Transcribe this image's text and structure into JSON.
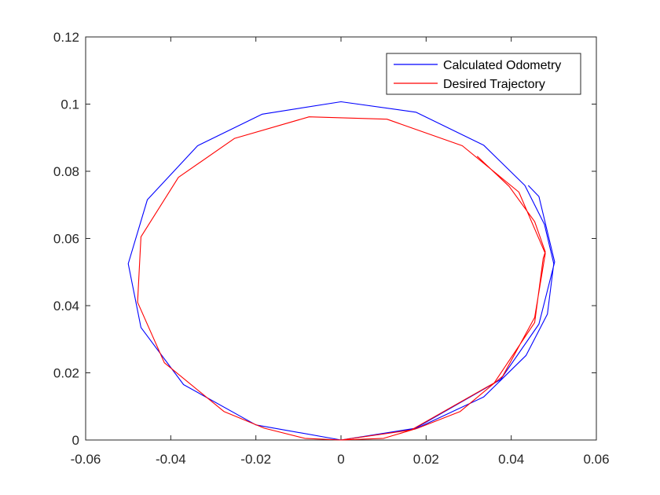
{
  "chart_data": {
    "type": "line",
    "title": "",
    "xlabel": "",
    "ylabel": "",
    "xlim": [
      -0.06,
      0.06
    ],
    "ylim": [
      0,
      0.12
    ],
    "x_ticks": [
      -0.06,
      -0.04,
      -0.02,
      0,
      0.02,
      0.04,
      0.06
    ],
    "x_tick_labels": [
      "-0.06",
      "-0.04",
      "-0.02",
      "0",
      "0.02",
      "0.04",
      "0.06"
    ],
    "y_ticks": [
      0,
      0.02,
      0.04,
      0.06,
      0.08,
      0.1,
      0.12
    ],
    "y_tick_labels": [
      "0",
      "0.02",
      "0.04",
      "0.06",
      "0.08",
      "0.1",
      "0.12"
    ],
    "grid": false,
    "legend_position": "top-right",
    "series": [
      {
        "name": "Calculated Odometry",
        "color": "#0000ff",
        "points": [
          [
            0,
            0
          ],
          [
            0.0175,
            0.0033
          ],
          [
            0.0335,
            0.0128
          ],
          [
            0.0435,
            0.0252
          ],
          [
            0.0485,
            0.0375
          ],
          [
            0.05,
            0.0525
          ],
          [
            0.0478,
            0.0642
          ],
          [
            0.0432,
            0.0758
          ],
          [
            0.0335,
            0.0878
          ],
          [
            0.0176,
            0.0976
          ],
          [
            0,
            0.1007
          ],
          [
            -0.0185,
            0.097
          ],
          [
            -0.0337,
            0.0876
          ],
          [
            -0.0455,
            0.0715
          ],
          [
            -0.05,
            0.0525
          ],
          [
            -0.047,
            0.0335
          ],
          [
            -0.037,
            0.0165
          ],
          [
            -0.02,
            0.0045
          ],
          [
            0,
            0
          ],
          [
            0.0175,
            0.0035
          ],
          [
            0.0375,
            0.018
          ],
          [
            0.0465,
            0.0345
          ],
          [
            0.0502,
            0.053
          ],
          [
            0.0465,
            0.0725
          ],
          [
            0.044,
            0.0758
          ]
        ]
      },
      {
        "name": "Desired Trajectory",
        "color": "#ff0000",
        "points": [
          [
            0,
            0
          ],
          [
            0.01,
            0.0005
          ],
          [
            0.018,
            0.0035
          ],
          [
            0.028,
            0.0085
          ],
          [
            0.038,
            0.019
          ],
          [
            0.0455,
            0.0365
          ],
          [
            0.048,
            0.0555
          ],
          [
            0.0418,
            0.0738
          ],
          [
            0.0285,
            0.0876
          ],
          [
            0.0108,
            0.0955
          ],
          [
            -0.0075,
            0.0962
          ],
          [
            -0.025,
            0.0898
          ],
          [
            -0.0382,
            0.0782
          ],
          [
            -0.047,
            0.0605
          ],
          [
            -0.0478,
            0.041
          ],
          [
            -0.0415,
            0.023
          ],
          [
            -0.0275,
            0.0085
          ],
          [
            -0.018,
            0.0035
          ],
          [
            -0.0085,
            0.0005
          ],
          [
            0,
            0
          ],
          [
            0.0165,
            0.003
          ],
          [
            0.036,
            0.017
          ],
          [
            0.0455,
            0.035
          ],
          [
            0.0475,
            0.054
          ],
          [
            0.048,
            0.056
          ],
          [
            0.0455,
            0.065
          ],
          [
            0.0395,
            0.0755
          ],
          [
            0.032,
            0.0845
          ]
        ]
      }
    ]
  }
}
